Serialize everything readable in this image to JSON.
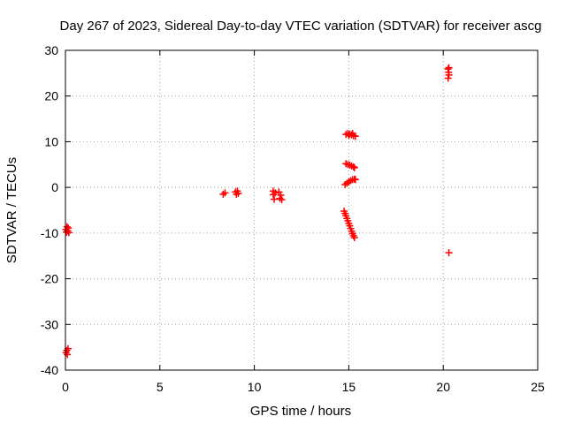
{
  "chart_data": {
    "type": "scatter",
    "title": "Day 267 of 2023, Sidereal Day-to-day VTEC variation (SDTVAR) for receiver ascg",
    "xlabel": "GPS time / hours",
    "ylabel": "SDTVAR / TECUs",
    "xlim": [
      0,
      25
    ],
    "ylim": [
      -40,
      30
    ],
    "xticks": [
      0,
      5,
      10,
      15,
      20,
      25
    ],
    "yticks": [
      -40,
      -30,
      -20,
      -10,
      0,
      10,
      20,
      30
    ],
    "xtick_labels": [
      "0",
      "5",
      "10",
      "15",
      "20",
      "25"
    ],
    "ytick_labels": [
      "-40",
      "-30",
      "-20",
      "-10",
      "0",
      "10",
      "20",
      "30"
    ],
    "grid": true,
    "marker": "+",
    "color": "#ff0000",
    "series": [
      {
        "name": "SDTVAR",
        "points": [
          [
            0.02,
            -9.2
          ],
          [
            0.05,
            -9.8
          ],
          [
            0.08,
            -8.6
          ],
          [
            0.12,
            -9.5
          ],
          [
            0.15,
            -8.9
          ],
          [
            0.18,
            -9.9
          ],
          [
            0.03,
            -36.2
          ],
          [
            0.07,
            -35.7
          ],
          [
            0.1,
            -36.6
          ],
          [
            0.14,
            -35.3
          ],
          [
            8.35,
            -1.5
          ],
          [
            8.45,
            -1.2
          ],
          [
            9.0,
            -1.0
          ],
          [
            9.05,
            -1.5
          ],
          [
            9.1,
            -0.8
          ],
          [
            9.15,
            -1.3
          ],
          [
            11.0,
            -0.8
          ],
          [
            11.0,
            -1.6
          ],
          [
            11.05,
            -2.6
          ],
          [
            11.1,
            -1.2
          ],
          [
            11.3,
            -1.0
          ],
          [
            11.35,
            -2.4
          ],
          [
            11.4,
            -1.7
          ],
          [
            11.45,
            -2.7
          ],
          [
            14.85,
            11.6
          ],
          [
            14.95,
            11.8
          ],
          [
            15.05,
            11.7
          ],
          [
            15.15,
            11.5
          ],
          [
            15.25,
            11.3
          ],
          [
            15.35,
            11.2
          ],
          [
            15.0,
            11.4
          ],
          [
            15.2,
            11.8
          ],
          [
            14.85,
            5.2
          ],
          [
            14.95,
            5.0
          ],
          [
            15.05,
            4.9
          ],
          [
            15.15,
            4.7
          ],
          [
            15.25,
            4.5
          ],
          [
            15.3,
            4.3
          ],
          [
            14.8,
            0.6
          ],
          [
            14.9,
            0.9
          ],
          [
            15.0,
            1.2
          ],
          [
            15.1,
            1.5
          ],
          [
            15.2,
            1.7
          ],
          [
            15.3,
            1.8
          ],
          [
            15.35,
            1.7
          ],
          [
            14.75,
            -5.2
          ],
          [
            14.8,
            -5.7
          ],
          [
            14.85,
            -6.2
          ],
          [
            14.9,
            -6.8
          ],
          [
            14.95,
            -7.3
          ],
          [
            15.0,
            -7.9
          ],
          [
            15.05,
            -8.4
          ],
          [
            15.1,
            -9.0
          ],
          [
            15.15,
            -9.6
          ],
          [
            15.2,
            -10.1
          ],
          [
            15.25,
            -10.6
          ],
          [
            15.3,
            -11.0
          ],
          [
            20.25,
            25.9
          ],
          [
            20.28,
            25.2
          ],
          [
            20.3,
            24.6
          ],
          [
            20.26,
            23.9
          ],
          [
            20.3,
            26.2
          ],
          [
            20.3,
            -14.3
          ]
        ]
      }
    ]
  }
}
